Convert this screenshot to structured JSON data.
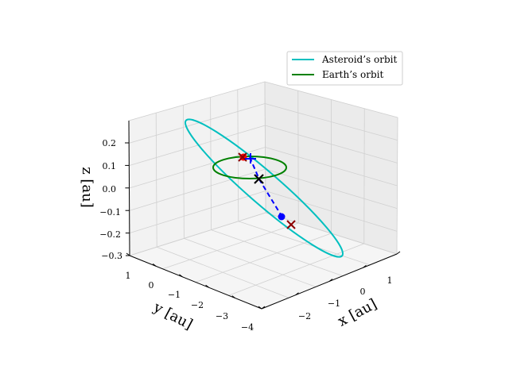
{
  "chart_data": {
    "type": "line",
    "projection": "3d",
    "xlabel": "x [au]",
    "ylabel": "y [au]",
    "zlabel": "z [au]",
    "x_ticks": [
      "−2",
      "−1",
      "0",
      "1"
    ],
    "y_ticks": [
      "1",
      "0",
      "−1",
      "−2",
      "−3",
      "−4"
    ],
    "z_ticks": [
      "0.2",
      "0.1",
      "0.0",
      "−0.1",
      "−0.2",
      "−0.3"
    ],
    "xlim": [
      -2.8,
      1.5
    ],
    "ylim": [
      -4.2,
      1.2
    ],
    "zlim": [
      -0.3,
      0.3
    ],
    "grid": true,
    "legend_position": "top-right",
    "series": [
      {
        "name": "Asteroid’s orbit",
        "color": "#00bfbf",
        "style": "solid",
        "shape": "ellipse",
        "center": [
          -0.7,
          -1.6,
          -0.02
        ],
        "semi_axis_a": 3.3,
        "semi_axis_b": 0.7
      },
      {
        "name": "Earth’s orbit",
        "color": "#008000",
        "style": "solid",
        "shape": "circle",
        "center": [
          0,
          0,
          0
        ],
        "radius": 1.0
      }
    ],
    "trajectory": {
      "color": "#0000ff",
      "style": "dashed",
      "points": [
        [
          0.95,
          0.35,
          0.09
        ],
        [
          0.1,
          -0.6,
          0.03
        ],
        [
          -1.0,
          -1.8,
          -0.06
        ]
      ]
    },
    "markers": [
      {
        "symbol": "x",
        "color": "#000000",
        "position": [
          0.15,
          -0.45,
          0.02
        ]
      },
      {
        "symbol": "x",
        "color": "#8b0000",
        "position": [
          0.95,
          0.3,
          0.1
        ]
      },
      {
        "symbol": "x",
        "color": "#8b0000",
        "position": [
          -1.5,
          -2.1,
          -0.1
        ]
      },
      {
        "symbol": "+",
        "color": "#0000ff",
        "position": [
          0.9,
          0.25,
          0.11
        ]
      },
      {
        "symbol": "dot",
        "color": "#0000ff",
        "position": [
          -1.05,
          -1.85,
          -0.065
        ]
      },
      {
        "symbol": "dot",
        "color": "#ff0000",
        "position": [
          1.0,
          0.32,
          0.1
        ]
      }
    ]
  }
}
